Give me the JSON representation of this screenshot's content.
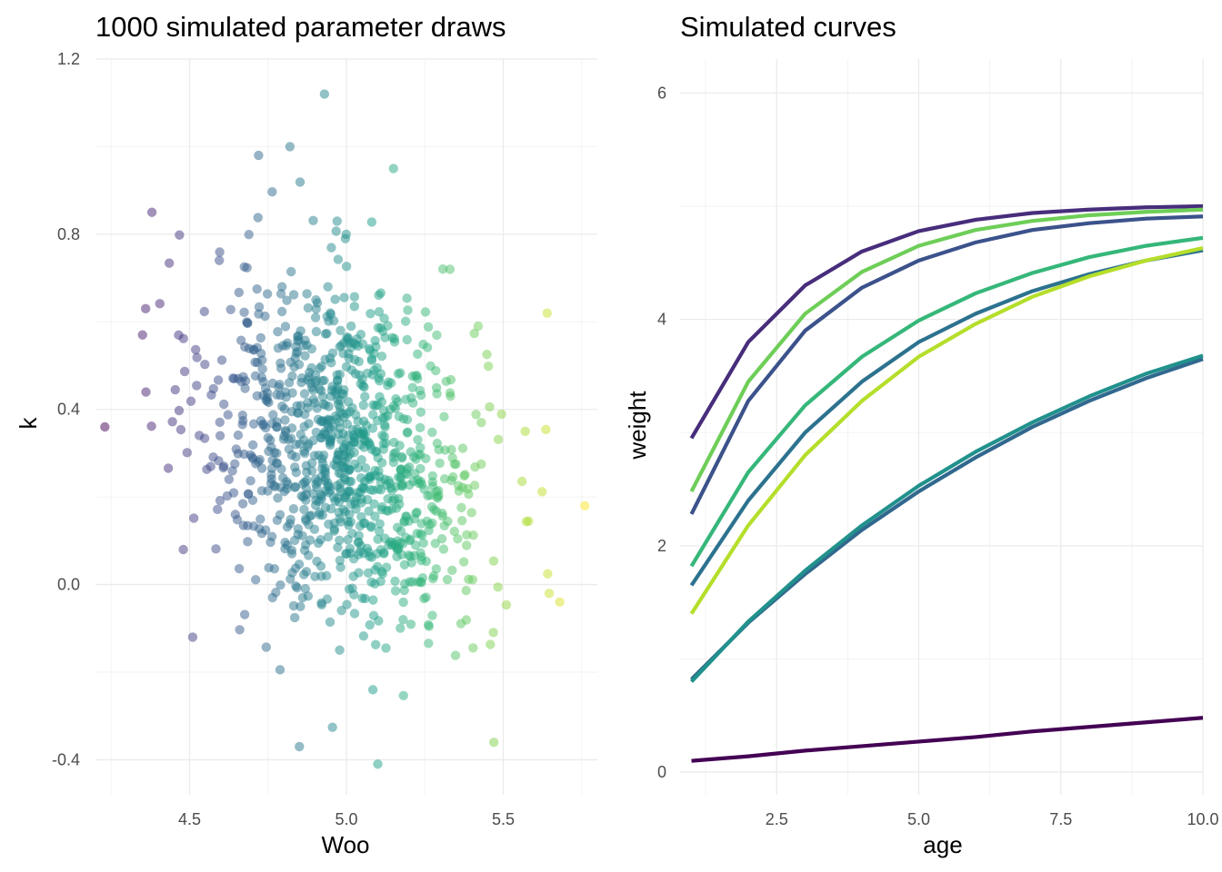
{
  "chart_data": [
    {
      "type": "scatter",
      "title": "1000 simulated parameter draws",
      "xlabel": "Woo",
      "ylabel": "k",
      "xlim": [
        4.2,
        5.8
      ],
      "ylim": [
        -0.48,
        1.2
      ],
      "x_ticks": [
        4.5,
        5.0,
        5.5
      ],
      "x_tick_labels": [
        "4.5",
        "5.0",
        "5.5"
      ],
      "y_ticks": [
        -0.4,
        0.0,
        0.4,
        0.8,
        1.2
      ],
      "y_tick_labels": [
        "-0.4",
        "0.0",
        "0.4",
        "0.8",
        "1.2"
      ],
      "grid": true,
      "legend": "none",
      "n_points": 1000,
      "color_scale": "viridis, mapped to Woo",
      "point_opacity": 0.5,
      "distribution": {
        "x_mean": 5.0,
        "x_sd": 0.22,
        "y_mean": 0.3,
        "y_sd": 0.2,
        "correlation": -0.25
      },
      "notable_points": [
        {
          "x": 4.93,
          "y": 1.12
        },
        {
          "x": 4.82,
          "y": 1.0
        },
        {
          "x": 4.72,
          "y": 0.98
        },
        {
          "x": 5.15,
          "y": 0.95
        },
        {
          "x": 4.23,
          "y": 0.36
        },
        {
          "x": 5.76,
          "y": 0.18
        },
        {
          "x": 5.68,
          "y": -0.04
        },
        {
          "x": 5.64,
          "y": 0.62
        },
        {
          "x": 5.57,
          "y": 0.35
        },
        {
          "x": 5.47,
          "y": -0.36
        },
        {
          "x": 5.1,
          "y": -0.41
        },
        {
          "x": 4.85,
          "y": -0.37
        },
        {
          "x": 4.51,
          "y": -0.12
        },
        {
          "x": 4.38,
          "y": 0.85
        },
        {
          "x": 4.36,
          "y": 0.63
        },
        {
          "x": 4.35,
          "y": 0.57
        },
        {
          "x": 4.48,
          "y": 0.08
        },
        {
          "x": 5.42,
          "y": 0.59
        },
        {
          "x": 5.33,
          "y": 0.72
        },
        {
          "x": 5.43,
          "y": 0.37
        }
      ]
    },
    {
      "type": "line",
      "title": "Simulated curves",
      "xlabel": "age",
      "ylabel": "weight",
      "xlim": [
        0.8,
        10.0
      ],
      "ylim": [
        -0.2,
        6.3
      ],
      "x_ticks": [
        2.5,
        5.0,
        7.5,
        10.0
      ],
      "x_tick_labels": [
        "2.5",
        "5.0",
        "7.5",
        "10.0"
      ],
      "y_ticks": [
        0,
        2,
        4,
        6
      ],
      "y_tick_labels": [
        "0",
        "2",
        "4",
        "6"
      ],
      "grid": true,
      "legend": "none",
      "x": [
        1,
        2,
        3,
        4,
        5,
        6,
        7,
        8,
        9,
        10
      ],
      "series": [
        {
          "color": "#440154",
          "values": [
            0.1,
            0.14,
            0.19,
            0.23,
            0.27,
            0.31,
            0.36,
            0.4,
            0.44,
            0.48
          ]
        },
        {
          "color": "#472d7b",
          "values": [
            2.95,
            3.8,
            4.3,
            4.6,
            4.78,
            4.88,
            4.94,
            4.97,
            4.99,
            5.0
          ]
        },
        {
          "color": "#3b528b",
          "values": [
            2.28,
            3.28,
            3.9,
            4.28,
            4.52,
            4.68,
            4.79,
            4.85,
            4.89,
            4.91
          ]
        },
        {
          "color": "#2c728e",
          "values": [
            1.65,
            2.4,
            3.0,
            3.45,
            3.8,
            4.05,
            4.25,
            4.4,
            4.52,
            4.61
          ]
        },
        {
          "color": "#31688e",
          "values": [
            0.82,
            1.32,
            1.75,
            2.14,
            2.48,
            2.78,
            3.05,
            3.28,
            3.48,
            3.65
          ]
        },
        {
          "color": "#21918c",
          "values": [
            0.8,
            1.33,
            1.78,
            2.18,
            2.53,
            2.83,
            3.09,
            3.32,
            3.52,
            3.68
          ]
        },
        {
          "color": "#35b779",
          "values": [
            1.82,
            2.65,
            3.24,
            3.67,
            3.99,
            4.23,
            4.41,
            4.55,
            4.65,
            4.72
          ]
        },
        {
          "color": "#6ece58",
          "values": [
            2.48,
            3.45,
            4.05,
            4.42,
            4.65,
            4.79,
            4.87,
            4.92,
            4.95,
            4.97
          ]
        },
        {
          "color": "#b5de2b",
          "values": [
            1.4,
            2.18,
            2.8,
            3.28,
            3.67,
            3.96,
            4.2,
            4.38,
            4.52,
            4.63
          ]
        }
      ]
    }
  ]
}
